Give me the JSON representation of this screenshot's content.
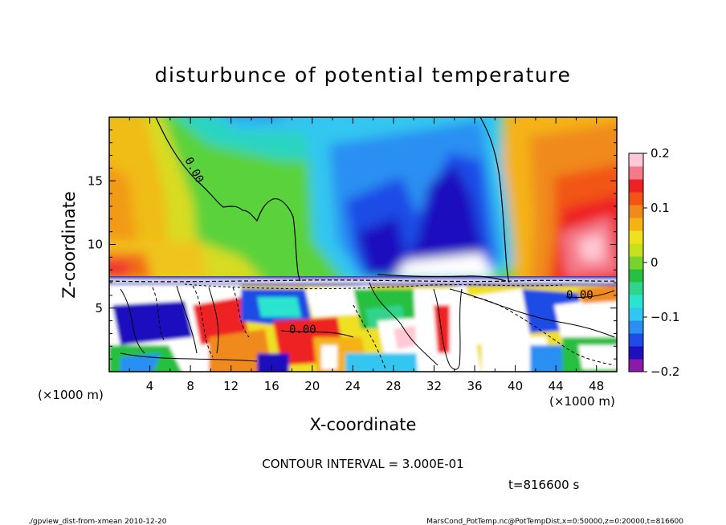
{
  "chart_data": {
    "type": "heatmap",
    "title": "disturbunce of potential temperature",
    "xlabel": "X-coordinate",
    "ylabel": "Z-coordinate",
    "x_unit_left": "(×1000 m)",
    "x_unit_right": "(×1000 m)",
    "xlim": [
      0,
      50
    ],
    "ylim": [
      0,
      20
    ],
    "x_ticks": [
      "4",
      "8",
      "12",
      "16",
      "20",
      "24",
      "28",
      "32",
      "36",
      "40",
      "44",
      "48"
    ],
    "x_tick_values": [
      4,
      8,
      12,
      16,
      20,
      24,
      28,
      32,
      36,
      40,
      44,
      48
    ],
    "y_ticks": [
      "5",
      "10",
      "15"
    ],
    "y_tick_values": [
      5,
      10,
      15
    ],
    "colorbar": {
      "labels": [
        "0.2",
        "0.1",
        "0",
        "−0.1",
        "−0.2"
      ],
      "values": [
        0.2,
        0.1,
        0,
        -0.1,
        -0.2
      ],
      "colors_low_to_high": [
        "#8a1aa8",
        "#1e10bf",
        "#1f4be6",
        "#2b8ff2",
        "#30c6f0",
        "#2be4d0",
        "#30d48c",
        "#26c040",
        "#7ad22c",
        "#c6e01e",
        "#f0e020",
        "#f4b216",
        "#f08a1a",
        "#f25418",
        "#ee2222",
        "#f47a8a",
        "#ffc8d4"
      ]
    },
    "contour_labels": [
      "0.00",
      "0.00",
      "0.00"
    ],
    "contour_interval": "CONTOUR INTERVAL = 3.000E-01",
    "time_label": "t=816600 s"
  },
  "footer": {
    "left": "./gpview_dist-from-xmean  2010-12-20",
    "right": "MarsCond_PotTemp.nc@PotTempDist,x=0:50000,z=0:20000,t=816600"
  }
}
